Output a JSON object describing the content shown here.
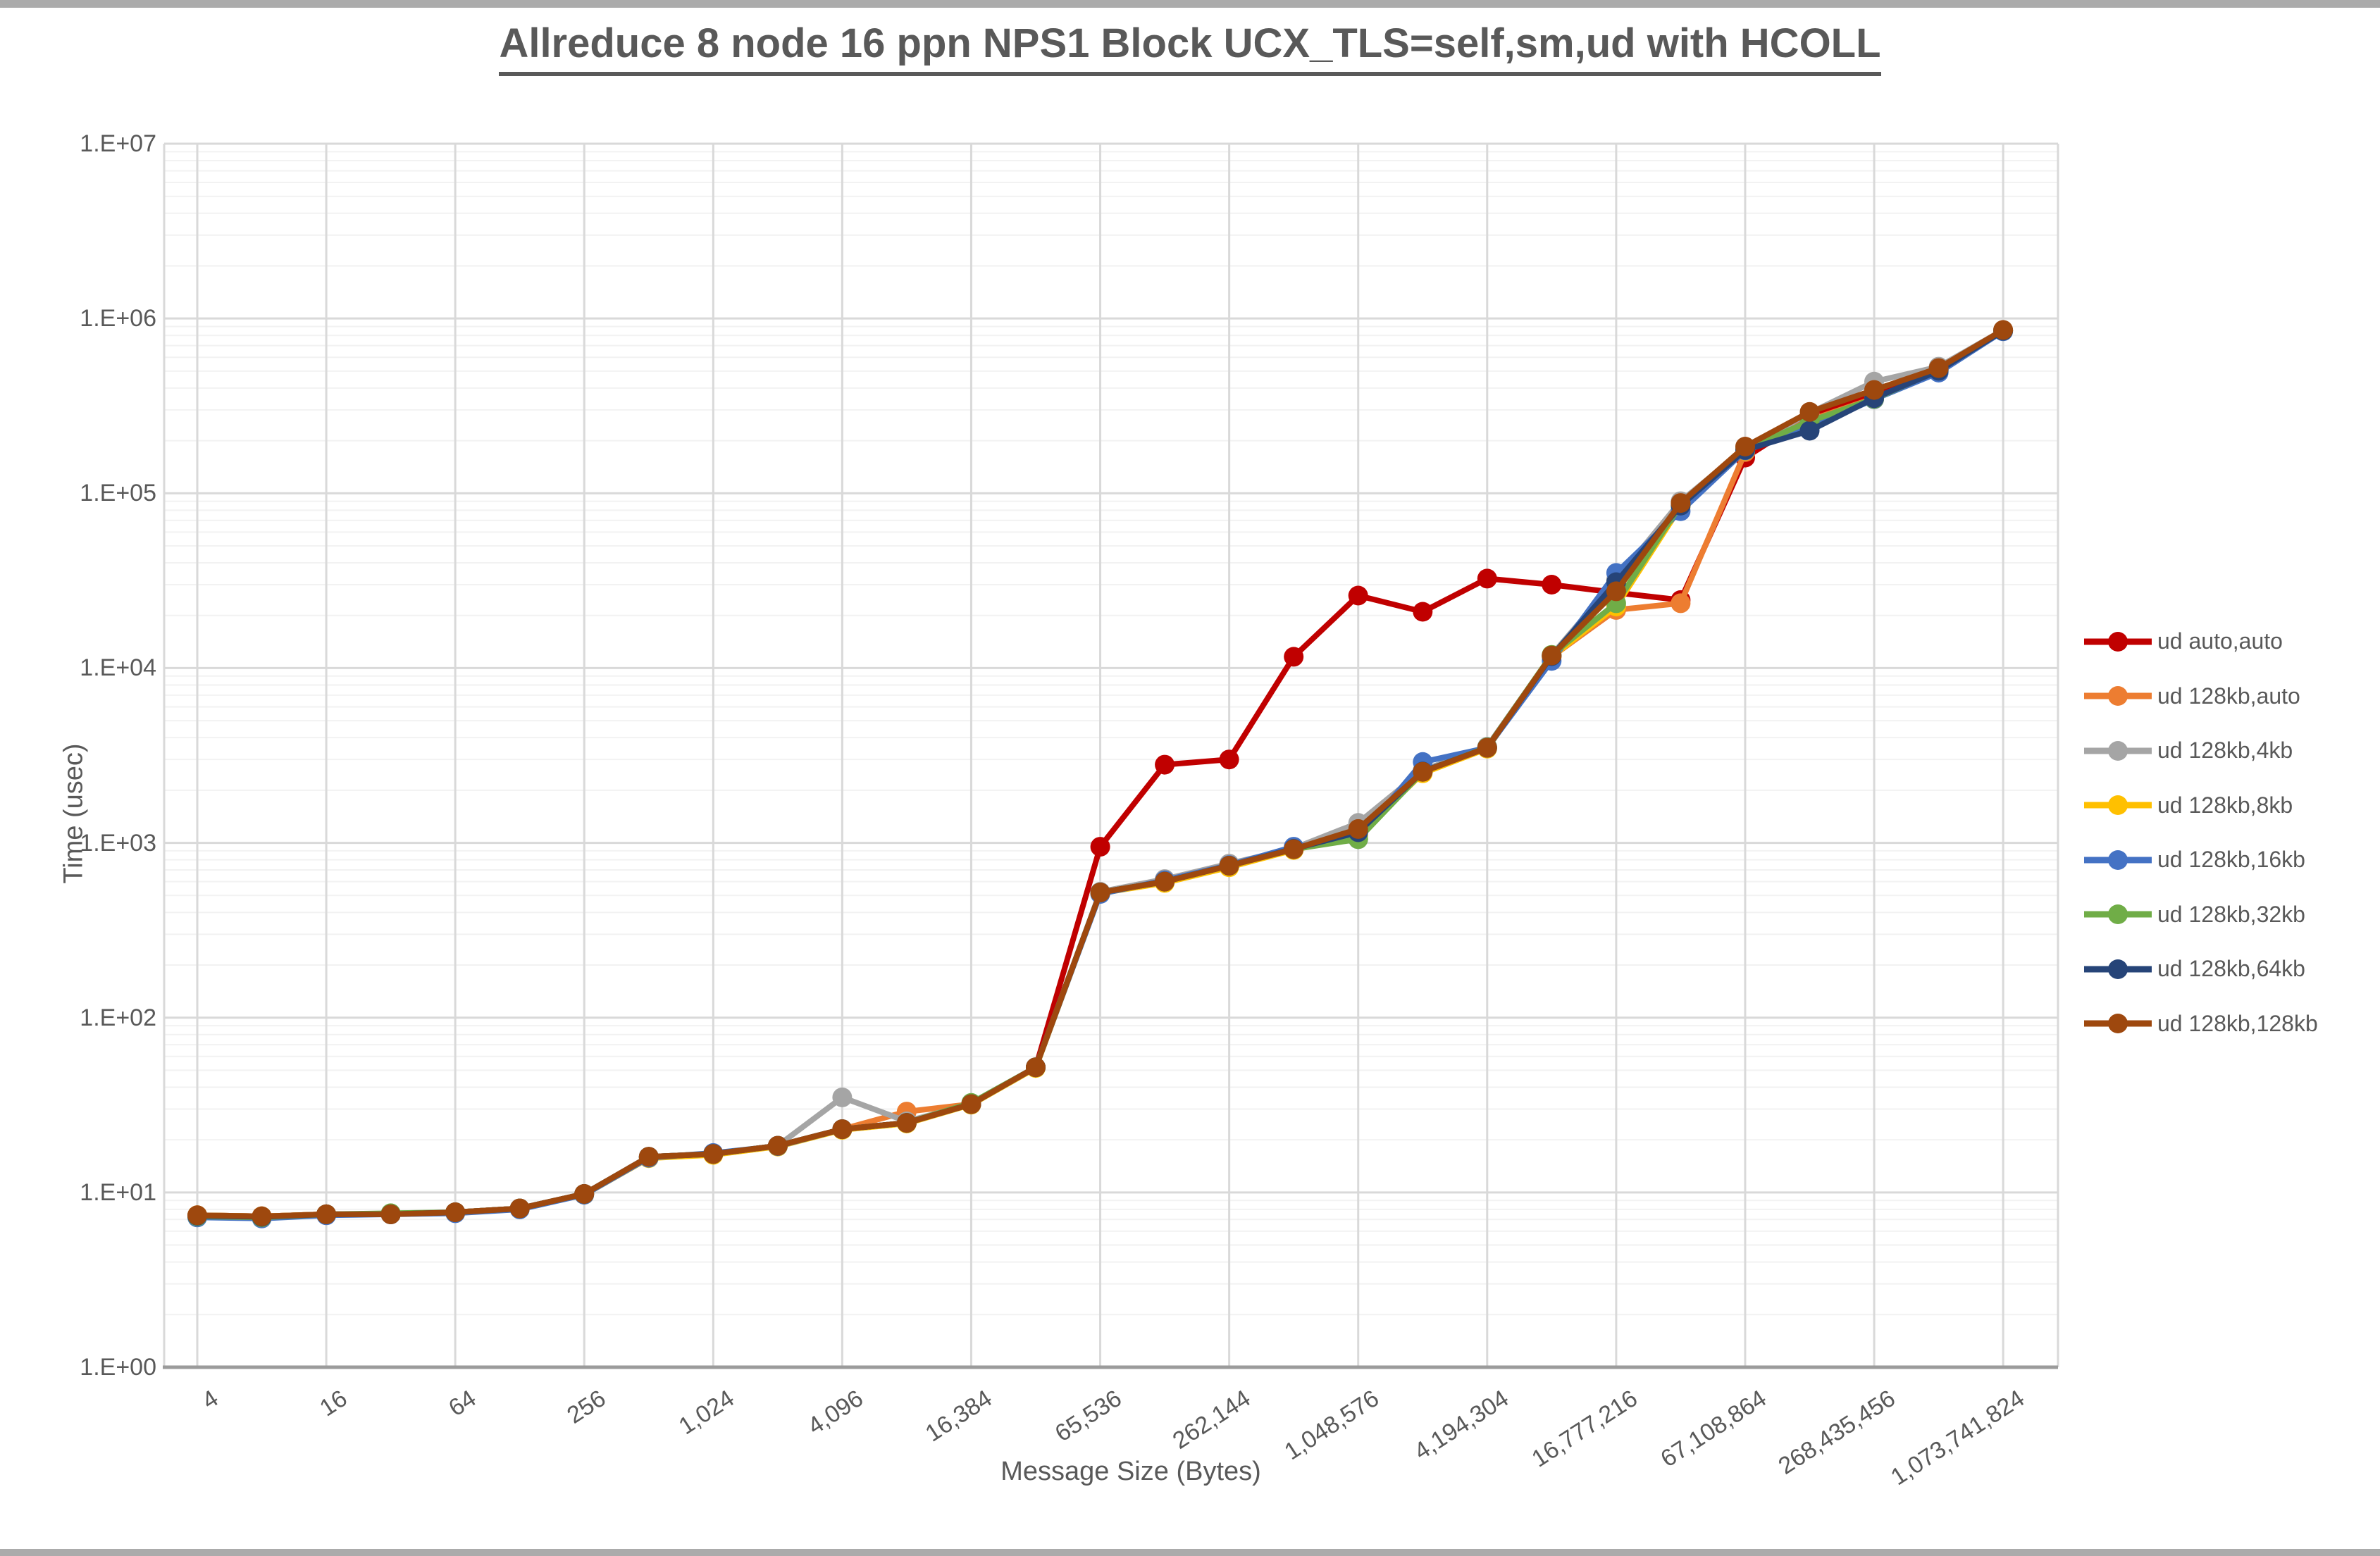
{
  "page": {
    "title": "Allreduce 8 node 16 ppn NPS1 Block UCX_TLS=self,sm,ud with HCOLL"
  },
  "axes": {
    "y_title": "Time (usec)",
    "x_title": "Message Size (Bytes)",
    "y_tick_labels": [
      "1.E+00",
      "1.E+01",
      "1.E+02",
      "1.E+03",
      "1.E+04",
      "1.E+05",
      "1.E+06",
      "1.E+07"
    ],
    "x_tick_labels": [
      "4",
      "16",
      "64",
      "256",
      "1,024",
      "4,096",
      "16,384",
      "65,536",
      "262,144",
      "1,048,576",
      "4,194,304",
      "16,777,216",
      "67,108,864",
      "268,435,456",
      "1,073,741,824"
    ]
  },
  "chart_data": {
    "type": "line",
    "title": "Allreduce 8 node 16 ppn NPS1 Block UCX_TLS=self,sm,ud with HCOLL",
    "xlabel": "Message Size (Bytes)",
    "ylabel": "Time (usec)",
    "x_scale": "log2",
    "y_scale": "log10",
    "ylim": [
      1,
      10000000
    ],
    "xlim": [
      4,
      1073741824
    ],
    "grid": "horizontal major+minor (log), vertical major at labeled ticks",
    "legend_position": "right",
    "x_categories": [
      4,
      8,
      16,
      32,
      64,
      128,
      256,
      512,
      1024,
      2048,
      4096,
      8192,
      16384,
      32768,
      65536,
      131072,
      262144,
      524288,
      1048576,
      2097152,
      4194304,
      8388608,
      16777216,
      33554432,
      67108864,
      134217728,
      268435456,
      536870912,
      1073741824
    ],
    "series": [
      {
        "name": "ud auto,auto",
        "color": "#C00000",
        "values": [
          7.4,
          7.3,
          7.5,
          7.5,
          7.7,
          8.1,
          9.8,
          16.0,
          16.6,
          18.5,
          23,
          25,
          32,
          52,
          950,
          2800,
          3000,
          11600,
          26000,
          21000,
          32500,
          30000,
          27000,
          24500,
          160000,
          275000,
          370000,
          510000,
          855000
        ]
      },
      {
        "name": "ud 128kb,auto",
        "color": "#ED7D31",
        "values": [
          7.4,
          7.3,
          7.5,
          7.5,
          7.7,
          8.1,
          9.8,
          15.9,
          16.5,
          18.4,
          23,
          29,
          32,
          52,
          518,
          595,
          735,
          915,
          1150,
          2540,
          3490,
          11600,
          21500,
          23500,
          172000,
          262000,
          350000,
          500000,
          850000
        ]
      },
      {
        "name": "ud 128kb,4kb",
        "color": "#A5A5A5",
        "values": [
          7.4,
          7.3,
          7.5,
          7.5,
          7.7,
          8.1,
          9.8,
          16.0,
          16.6,
          18.5,
          35,
          25.5,
          32,
          52,
          525,
          620,
          760,
          930,
          1300,
          2600,
          3550,
          11850,
          32000,
          90000,
          180000,
          288000,
          435000,
          530000,
          858000
        ]
      },
      {
        "name": "ud 128kb,8kb",
        "color": "#FFC000",
        "values": [
          7.4,
          7.3,
          7.5,
          7.5,
          7.7,
          8.1,
          9.7,
          15.7,
          16.4,
          18.3,
          22.8,
          24.8,
          31.8,
          51.5,
          515,
          590,
          725,
          910,
          1100,
          2500,
          3460,
          11600,
          22500,
          84000,
          175000,
          248000,
          345000,
          505000,
          852000
        ]
      },
      {
        "name": "ud 128kb,16kb",
        "color": "#4472C4",
        "values": [
          7.2,
          7.1,
          7.4,
          7.5,
          7.6,
          8.0,
          9.7,
          15.8,
          16.8,
          18.4,
          23,
          25,
          32,
          52,
          510,
          610,
          745,
          950,
          1050,
          2900,
          3500,
          11000,
          35000,
          79000,
          176000,
          237000,
          345000,
          490000,
          845000
        ]
      },
      {
        "name": "ud 128kb,32kb",
        "color": "#70AD47",
        "values": [
          7.3,
          7.2,
          7.5,
          7.6,
          7.7,
          8.1,
          9.8,
          16.0,
          16.6,
          18.5,
          23,
          25,
          32.5,
          52,
          520,
          600,
          740,
          920,
          1050,
          2550,
          3520,
          11900,
          23500,
          86000,
          178000,
          258000,
          347000,
          505000,
          853000
        ]
      },
      {
        "name": "ud 128kb,64kb",
        "color": "#264478",
        "values": [
          7.35,
          7.25,
          7.5,
          7.5,
          7.7,
          8.1,
          9.8,
          16.0,
          16.6,
          18.5,
          23,
          25,
          32,
          52,
          520,
          600,
          740,
          925,
          1150,
          2560,
          3500,
          11700,
          31000,
          85000,
          177000,
          228000,
          350000,
          502000,
          851000
        ]
      },
      {
        "name": "ud 128kb,128kb",
        "color": "#9E480E",
        "values": [
          7.4,
          7.3,
          7.5,
          7.5,
          7.7,
          8.1,
          9.8,
          16.0,
          16.6,
          18.5,
          23,
          25,
          32,
          52,
          520,
          600,
          740,
          920,
          1200,
          2550,
          3500,
          11800,
          27500,
          88000,
          185000,
          292000,
          390000,
          520000,
          860000
        ]
      }
    ]
  },
  "style_colors": {
    "text": "#595959",
    "gridline_major": "#d9d9d9",
    "gridline_minor": "#f2f2f2",
    "axis_line": "#9b9b9b",
    "edge_bar": "#ababab"
  }
}
